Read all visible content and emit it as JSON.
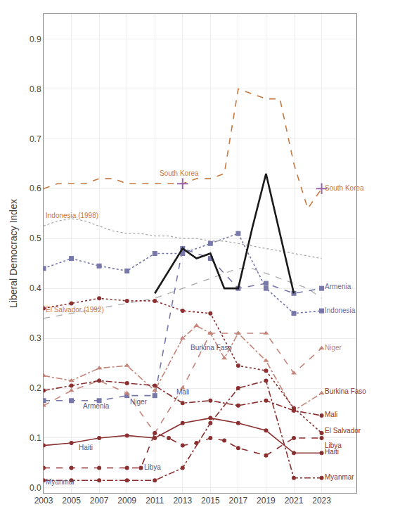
{
  "chart_data": {
    "type": "line",
    "ylabel": "Liberal Democracy Index",
    "xlim": [
      2003,
      2025.5
    ],
    "ylim": [
      -0.01,
      0.95
    ],
    "xticks": [
      2003,
      2005,
      2007,
      2009,
      2011,
      2013,
      2015,
      2017,
      2019,
      2021,
      2023
    ],
    "yticks": [
      {
        "value": 0,
        "label": "0.0"
      },
      0.1,
      0.2,
      0.3,
      0.4,
      0.5,
      0.6,
      0.7,
      0.8,
      0.9
    ],
    "grid": true,
    "series": [
      {
        "type": "line",
        "color": "#aaaaaa",
        "line_style": "dotted",
        "x": [
          2003,
          2004,
          2005,
          2006,
          2007,
          2008,
          2009,
          2010,
          2011,
          2012,
          2013,
          2014,
          2015,
          2016,
          2017,
          2018,
          2019,
          2020,
          2021,
          2022,
          2023
        ],
        "values": [
          0.525,
          0.535,
          0.54,
          0.535,
          0.525,
          0.515,
          0.51,
          0.51,
          0.505,
          0.505,
          0.5,
          0.5,
          0.495,
          0.495,
          0.49,
          0.485,
          0.48,
          0.475,
          0.47,
          0.465,
          0.46
        ]
      },
      {
        "type": "line",
        "color": "#aaaaaa",
        "line_style": "dashed",
        "x": [
          2003,
          2004,
          2005,
          2006,
          2007,
          2008,
          2009,
          2010,
          2011,
          2012,
          2013,
          2014,
          2015,
          2016,
          2017,
          2018,
          2019,
          2020,
          2021,
          2022,
          2023
        ],
        "values": [
          0.34,
          0.345,
          0.35,
          0.355,
          0.36,
          0.365,
          0.37,
          0.375,
          0.38,
          0.39,
          0.4,
          0.41,
          0.42,
          0.43,
          0.44,
          0.44,
          0.43,
          0.42,
          0.41,
          0.4,
          0.38
        ]
      },
      {
        "type": "line",
        "color": "#c87941",
        "line_style": "dashed",
        "x": [
          2003,
          2004,
          2005,
          2006,
          2007,
          2008,
          2009,
          2010,
          2011,
          2012,
          2013,
          2014,
          2015,
          2016,
          2017,
          2018,
          2019,
          2020,
          2021,
          2022,
          2023
        ],
        "values": [
          0.6,
          0.61,
          0.61,
          0.61,
          0.62,
          0.62,
          0.61,
          0.61,
          0.61,
          0.61,
          0.61,
          0.62,
          0.62,
          0.63,
          0.8,
          0.79,
          0.78,
          0.78,
          0.65,
          0.56,
          0.6
        ]
      },
      {
        "type": "scatter",
        "color": "#9966aa",
        "marker": "cross",
        "x": [
          2013,
          2023
        ],
        "values": [
          0.61,
          0.6
        ]
      },
      {
        "type": "line",
        "color": "#7777aa",
        "line_style": "dashed",
        "marker": "square",
        "x": [
          2003,
          2005,
          2007,
          2009,
          2011,
          2013,
          2015,
          2017,
          2019,
          2021,
          2023
        ],
        "values": [
          0.175,
          0.175,
          0.175,
          0.185,
          0.185,
          0.48,
          0.46,
          0.4,
          0.41,
          0.39,
          0.4
        ]
      },
      {
        "type": "line",
        "color": "#7777aa",
        "line_style": "dotted",
        "marker": "square",
        "x": [
          2003,
          2005,
          2007,
          2009,
          2011,
          2013,
          2015,
          2017,
          2019,
          2021,
          2023
        ],
        "values": [
          0.44,
          0.46,
          0.445,
          0.435,
          0.47,
          0.47,
          0.49,
          0.51,
          0.4,
          0.35,
          0.355
        ]
      },
      {
        "type": "line",
        "color": "#c4857a",
        "line_style": "dashed",
        "marker": "triangle",
        "x": [
          2003,
          2005,
          2007,
          2009,
          2011,
          2013,
          2015,
          2017,
          2019,
          2021,
          2023
        ],
        "values": [
          0.165,
          0.195,
          0.215,
          0.19,
          0.11,
          0.2,
          0.31,
          0.31,
          0.31,
          0.23,
          0.28
        ]
      },
      {
        "type": "line",
        "color": "#c4857a",
        "line_style": "dashdot",
        "marker": "triangle",
        "x": [
          2003,
          2005,
          2007,
          2009,
          2011,
          2013,
          2014,
          2015,
          2016,
          2017,
          2019,
          2021,
          2023
        ],
        "values": [
          0.225,
          0.215,
          0.24,
          0.245,
          0.195,
          0.3,
          0.325,
          0.31,
          0.26,
          0.31,
          0.255,
          0.155,
          0.19
        ]
      },
      {
        "type": "line",
        "color": "#8b3030",
        "line_style": "dashdot",
        "marker": "circle",
        "x": [
          2003,
          2005,
          2007,
          2009,
          2011,
          2013,
          2015,
          2017,
          2019,
          2021,
          2023
        ],
        "values": [
          0.195,
          0.205,
          0.215,
          0.21,
          0.205,
          0.17,
          0.175,
          0.165,
          0.175,
          0.155,
          0.145
        ]
      },
      {
        "type": "line",
        "color": "#8b3030",
        "line_style": "dotted",
        "marker": "circle",
        "x": [
          2003,
          2005,
          2007,
          2009,
          2011,
          2013,
          2015,
          2017,
          2019,
          2021,
          2023
        ],
        "values": [
          0.36,
          0.37,
          0.38,
          0.375,
          0.375,
          0.355,
          0.35,
          0.245,
          0.235,
          0.16,
          0.11
        ]
      },
      {
        "type": "line",
        "color": "#8b3030",
        "line_style": "dashed",
        "marker": "circle",
        "x": [
          2003,
          2005,
          2007,
          2009,
          2010,
          2011,
          2012,
          2013,
          2014,
          2015,
          2016,
          2017,
          2019,
          2021,
          2023
        ],
        "values": [
          0.04,
          0.04,
          0.04,
          0.04,
          0.04,
          0.11,
          0.1,
          0.085,
          0.09,
          0.1,
          0.095,
          0.08,
          0.065,
          0.1,
          0.1
        ]
      },
      {
        "type": "line",
        "color": "#8b3030",
        "line_style": "solid",
        "marker": "circle",
        "x": [
          2003,
          2005,
          2007,
          2009,
          2011,
          2013,
          2015,
          2017,
          2019,
          2021,
          2023
        ],
        "values": [
          0.085,
          0.09,
          0.1,
          0.105,
          0.1,
          0.13,
          0.14,
          0.13,
          0.115,
          0.07,
          0.07
        ]
      },
      {
        "type": "line",
        "color": "#8b3030",
        "line_style": "dashdot",
        "marker": "circle",
        "x": [
          2003,
          2005,
          2007,
          2009,
          2011,
          2013,
          2015,
          2017,
          2019,
          2021,
          2023
        ],
        "values": [
          0.015,
          0.015,
          0.015,
          0.015,
          0.015,
          0.04,
          0.13,
          0.2,
          0.215,
          0.02,
          0.02
        ]
      },
      {
        "type": "line",
        "color": "#1a1a1a",
        "line_style": "solid",
        "x": [
          2011,
          2012,
          2013,
          2014,
          2015,
          2016,
          2017,
          2018,
          2019,
          2021
        ],
        "values": [
          0.39,
          0.435,
          0.48,
          0.46,
          0.47,
          0.4,
          0.4,
          0.52,
          0.63,
          0.39
        ]
      }
    ],
    "annotations": [
      {
        "text": "Indonesia (1998)",
        "x": 2003.1,
        "y": 0.537,
        "color": "#c87941"
      },
      {
        "text": "El Salvador (1992)",
        "x": 2003.1,
        "y": 0.348,
        "color": "#c87941"
      },
      {
        "text": "South Korea",
        "x": 2011.3,
        "y": 0.622,
        "color": "#c87941"
      },
      {
        "text": "South Korea",
        "x": 2023.15,
        "y": 0.592,
        "color": "#c87941"
      },
      {
        "text": "Armenia",
        "x": 2005.8,
        "y": 0.155,
        "color": "#555577"
      },
      {
        "text": "Armenia",
        "x": 2023.15,
        "y": 0.395,
        "color": "#6b6b9a"
      },
      {
        "text": "Indonesia",
        "x": 2023.15,
        "y": 0.347,
        "color": "#6b6b9a"
      },
      {
        "text": "Niger",
        "x": 2009.15,
        "y": 0.163,
        "color": "#555577"
      },
      {
        "text": "Niger",
        "x": 2023.15,
        "y": 0.272,
        "color": "#c4857a"
      },
      {
        "text": "Burkina Faso",
        "x": 2013.5,
        "y": 0.272,
        "color": "#555577"
      },
      {
        "text": "Burkina Faso",
        "x": 2023.15,
        "y": 0.185,
        "color": "#8b3030"
      },
      {
        "text": "Mali",
        "x": 2012.5,
        "y": 0.183,
        "color": "#555577"
      },
      {
        "text": "Mali",
        "x": 2023.15,
        "y": 0.138,
        "color": "#8b3030"
      },
      {
        "text": "El Salvador",
        "x": 2023.15,
        "y": 0.105,
        "color": "#8b3030"
      },
      {
        "text": "Libya",
        "x": 2010.2,
        "y": 0.032,
        "color": "#555577"
      },
      {
        "text": "Libya",
        "x": 2023.15,
        "y": 0.095,
        "color": "#8b3030"
      },
      {
        "text": "Haiti",
        "x": 2005.5,
        "y": 0.072,
        "color": "#555577"
      },
      {
        "text": "Haiti",
        "x": 2023.15,
        "y": 0.063,
        "color": "#8b3030"
      },
      {
        "text": "Myanmar",
        "x": 2003.1,
        "y": 0.003,
        "color": "#555577"
      },
      {
        "text": "Myanmar",
        "x": 2023.15,
        "y": 0.013,
        "color": "#8b3030"
      }
    ]
  }
}
